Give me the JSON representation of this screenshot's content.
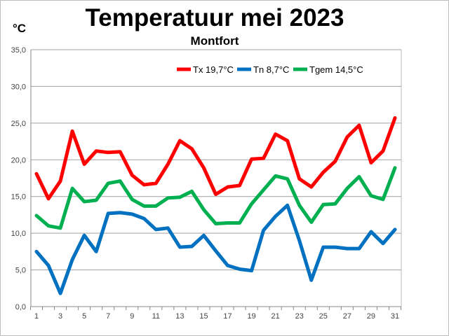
{
  "chart_data": {
    "type": "line",
    "title": "Temperatuur mei 2023",
    "subtitle": "Montfort",
    "ylabel": "°C",
    "xlabel": "",
    "ylim": [
      0,
      35
    ],
    "yticks": [
      "0,0",
      "5,0",
      "10,0",
      "15,0",
      "20,0",
      "25,0",
      "30,0",
      "35,0"
    ],
    "ytick_values": [
      0,
      5,
      10,
      15,
      20,
      25,
      30,
      35
    ],
    "x": [
      1,
      2,
      3,
      4,
      5,
      6,
      7,
      8,
      9,
      10,
      11,
      12,
      13,
      14,
      15,
      16,
      17,
      18,
      19,
      20,
      21,
      22,
      23,
      24,
      25,
      26,
      27,
      28,
      29,
      30,
      31
    ],
    "xtick_labels": [
      "1",
      "3",
      "5",
      "7",
      "9",
      "11",
      "13",
      "15",
      "17",
      "19",
      "21",
      "23",
      "25",
      "27",
      "29",
      "31"
    ],
    "grid": true,
    "legend_position": "top-right",
    "series": [
      {
        "name": "Tx 19,7°C",
        "color": "#ff0000",
        "values": [
          18.1,
          14.7,
          17.1,
          23.9,
          19.4,
          21.2,
          21.0,
          21.1,
          17.9,
          16.6,
          16.8,
          19.4,
          22.6,
          21.5,
          18.9,
          15.3,
          16.3,
          16.5,
          20.1,
          20.2,
          23.5,
          22.6,
          17.4,
          16.3,
          18.3,
          19.8,
          23.1,
          24.7,
          19.6,
          21.2,
          25.7
        ]
      },
      {
        "name": "Tn 8,7°C",
        "color": "#0070c0",
        "values": [
          7.5,
          5.6,
          1.8,
          6.4,
          9.7,
          7.5,
          12.7,
          12.8,
          12.6,
          12.0,
          10.5,
          10.7,
          8.1,
          8.2,
          9.7,
          7.6,
          5.6,
          5.1,
          4.9,
          10.4,
          12.3,
          13.8,
          9.0,
          3.6,
          8.1,
          8.1,
          7.9,
          7.9,
          10.2,
          8.6,
          10.5
        ]
      },
      {
        "name": "Tgem 14,5°C",
        "color": "#00b050",
        "values": [
          12.4,
          11.0,
          10.7,
          16.1,
          14.3,
          14.5,
          16.8,
          17.1,
          14.6,
          13.7,
          13.7,
          14.8,
          14.9,
          15.7,
          13.2,
          11.3,
          11.4,
          11.4,
          14.0,
          15.9,
          17.8,
          17.4,
          13.8,
          11.5,
          13.9,
          14.0,
          16.1,
          17.7,
          15.1,
          14.6,
          18.9
        ]
      }
    ]
  }
}
